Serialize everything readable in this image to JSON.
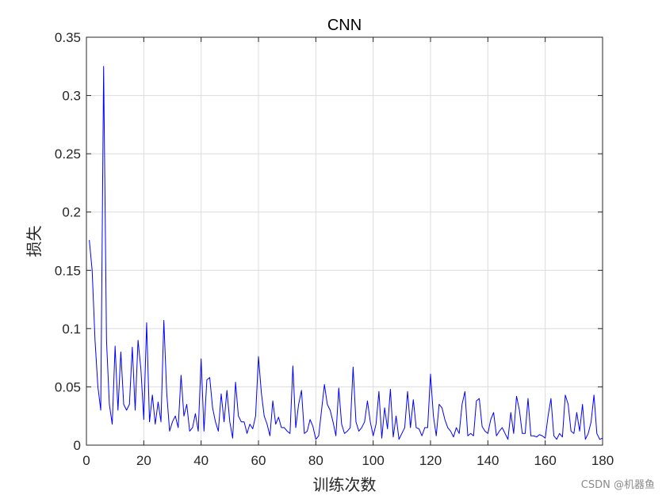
{
  "chart_data": {
    "type": "line",
    "title": "CNN",
    "xlabel": "训练次数",
    "ylabel": "损失",
    "xlim": [
      0,
      180
    ],
    "ylim": [
      0,
      0.35
    ],
    "xticks": [
      0,
      20,
      40,
      60,
      80,
      100,
      120,
      140,
      160,
      180
    ],
    "yticks": [
      0,
      0.05,
      0.1,
      0.15,
      0.2,
      0.25,
      0.3,
      0.35
    ],
    "grid": true,
    "line_color": "#0000ff",
    "series": [
      {
        "x": [
          1,
          2,
          3,
          4,
          5,
          6,
          7,
          8,
          9,
          10,
          11,
          12,
          13,
          14,
          15,
          16,
          17,
          18,
          19,
          20,
          21,
          22,
          23,
          24,
          25,
          26,
          27,
          28,
          29,
          30,
          31,
          32,
          33,
          34,
          35,
          36,
          37,
          38,
          39,
          40,
          41,
          42,
          43,
          44,
          45,
          46,
          47,
          48,
          49,
          50,
          51,
          52,
          53,
          54,
          55,
          56,
          57,
          58,
          59,
          60,
          61,
          62,
          63,
          64,
          65,
          66,
          67,
          68,
          69,
          70,
          71,
          72,
          73,
          74,
          75,
          76,
          77,
          78,
          79,
          80,
          81,
          82,
          83,
          84,
          85,
          86,
          87,
          88,
          89,
          90,
          91,
          92,
          93,
          94,
          95,
          96,
          97,
          98,
          99,
          100,
          101,
          102,
          103,
          104,
          105,
          106,
          107,
          108,
          109,
          110,
          111,
          112,
          113,
          114,
          115,
          116,
          117,
          118,
          119,
          120,
          121,
          122,
          123,
          124,
          125,
          126,
          127,
          128,
          129,
          130,
          131,
          132,
          133,
          134,
          135,
          136,
          137,
          138,
          139,
          140,
          141,
          142,
          143,
          144,
          145,
          146,
          147,
          148,
          149,
          150,
          151,
          152,
          153,
          154,
          155,
          156,
          157,
          158,
          159,
          160,
          161,
          162,
          163,
          164,
          165,
          166,
          167,
          168,
          169,
          170,
          171,
          172,
          173,
          174,
          175,
          176,
          177,
          178,
          179,
          180
        ],
        "y": [
          0.176,
          0.15,
          0.09,
          0.05,
          0.03,
          0.325,
          0.09,
          0.035,
          0.018,
          0.085,
          0.03,
          0.08,
          0.035,
          0.03,
          0.035,
          0.084,
          0.03,
          0.09,
          0.065,
          0.022,
          0.105,
          0.02,
          0.043,
          0.018,
          0.037,
          0.02,
          0.107,
          0.045,
          0.012,
          0.02,
          0.025,
          0.015,
          0.06,
          0.025,
          0.035,
          0.012,
          0.015,
          0.027,
          0.012,
          0.074,
          0.012,
          0.056,
          0.058,
          0.032,
          0.02,
          0.012,
          0.044,
          0.02,
          0.047,
          0.02,
          0.006,
          0.054,
          0.025,
          0.02,
          0.02,
          0.01,
          0.018,
          0.014,
          0.025,
          0.076,
          0.045,
          0.025,
          0.018,
          0.008,
          0.038,
          0.018,
          0.024,
          0.015,
          0.015,
          0.012,
          0.01,
          0.068,
          0.015,
          0.035,
          0.047,
          0.01,
          0.012,
          0.022,
          0.016,
          0.005,
          0.008,
          0.03,
          0.052,
          0.035,
          0.03,
          0.02,
          0.008,
          0.049,
          0.018,
          0.01,
          0.012,
          0.015,
          0.067,
          0.02,
          0.012,
          0.015,
          0.02,
          0.038,
          0.02,
          0.008,
          0.018,
          0.046,
          0.006,
          0.032,
          0.014,
          0.048,
          0.007,
          0.025,
          0.005,
          0.01,
          0.015,
          0.046,
          0.015,
          0.039,
          0.015,
          0.014,
          0.008,
          0.015,
          0.015,
          0.061,
          0.025,
          0.008,
          0.035,
          0.032,
          0.022,
          0.015,
          0.012,
          0.007,
          0.015,
          0.01,
          0.035,
          0.046,
          0.008,
          0.01,
          0.008,
          0.038,
          0.04,
          0.016,
          0.012,
          0.01,
          0.022,
          0.028,
          0.008,
          0.012,
          0.015,
          0.01,
          0.005,
          0.028,
          0.01,
          0.042,
          0.03,
          0.01,
          0.01,
          0.04,
          0.008,
          0.008,
          0.007,
          0.009,
          0.008,
          0.006,
          0.025,
          0.04,
          0.008,
          0.005,
          0.01,
          0.007,
          0.043,
          0.035,
          0.012,
          0.01,
          0.028,
          0.012,
          0.035,
          0.005,
          0.01,
          0.02,
          0.043,
          0.01,
          0.005,
          0.006
        ]
      }
    ]
  },
  "watermark": "CSDN @机器鱼"
}
